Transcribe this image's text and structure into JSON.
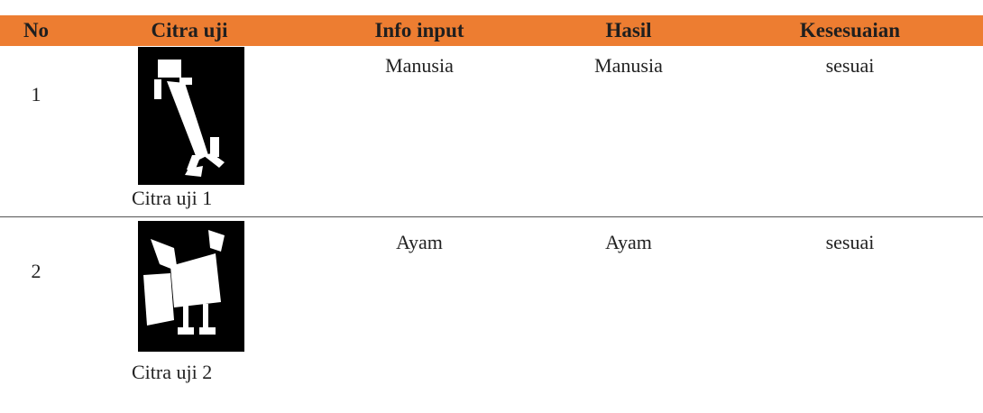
{
  "table": {
    "header": [
      "No",
      "Citra uji",
      "Info input",
      "Hasil",
      "Kesesuaian"
    ],
    "rows": [
      {
        "no": "1",
        "caption": "Citra uji 1",
        "info_input": "Manusia",
        "hasil": "Manusia",
        "kesesuaian": "sesuai"
      },
      {
        "no": "2",
        "caption": "Citra uji 2",
        "info_input": "Ayam",
        "hasil": "Ayam",
        "kesesuaian": "sesuai"
      }
    ]
  }
}
